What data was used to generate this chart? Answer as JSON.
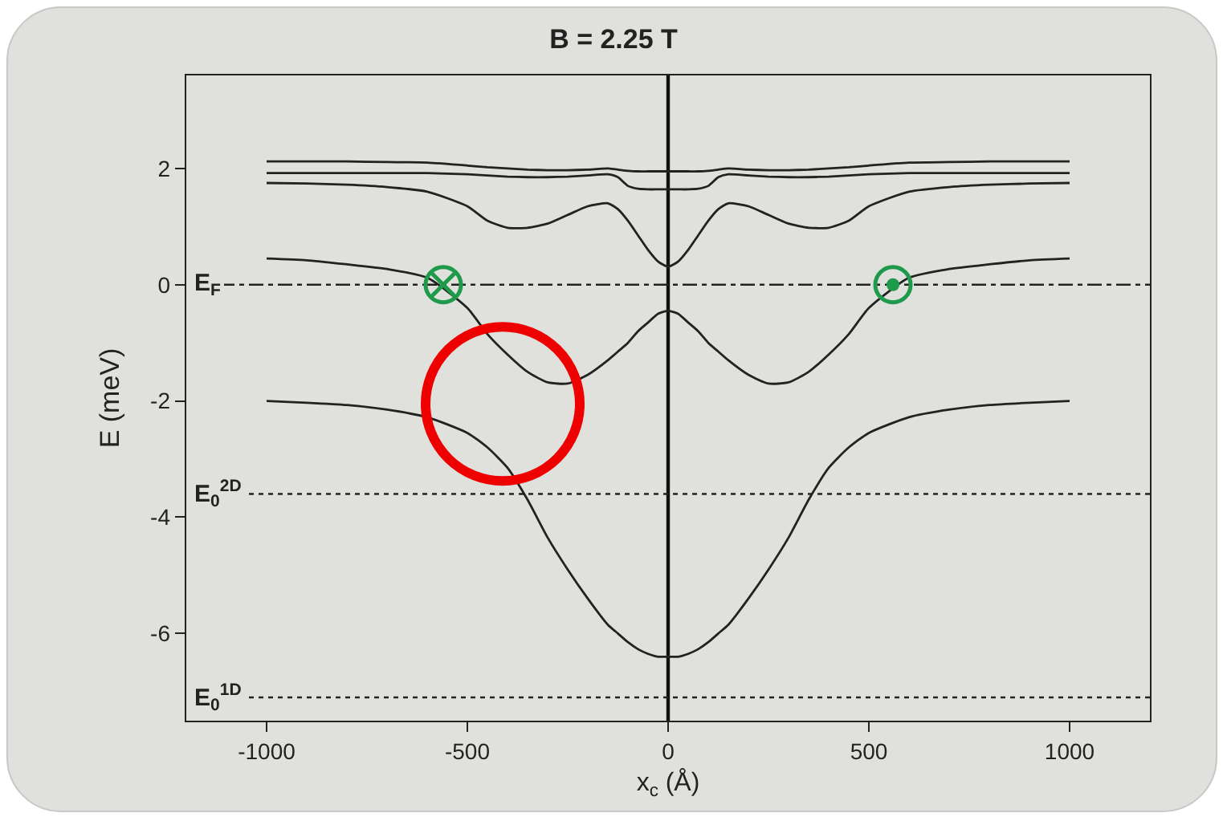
{
  "chart_data": {
    "type": "line",
    "title": "B = 2.25 T",
    "xlabel": "x$_{c}$ (Å)",
    "ylabel": "E (meV)",
    "x": [
      -1000,
      -900,
      -800,
      -700,
      -600,
      -500,
      -450,
      -400,
      -350,
      -300,
      -250,
      -200,
      -150,
      -125,
      -100,
      -75,
      -50,
      -25,
      0,
      25,
      50,
      75,
      100,
      125,
      150,
      200,
      250,
      300,
      350,
      400,
      450,
      500,
      600,
      700,
      800,
      900,
      1000
    ],
    "series": [
      {
        "color": "#222222",
        "values": [
          -2.0,
          -2.03,
          -2.07,
          -2.15,
          -2.28,
          -2.55,
          -2.8,
          -3.15,
          -3.7,
          -4.35,
          -4.9,
          -5.4,
          -5.85,
          -6.0,
          -6.15,
          -6.27,
          -6.35,
          -6.4,
          -6.4,
          -6.4,
          -6.35,
          -6.27,
          -6.15,
          -6.0,
          -5.85,
          -5.4,
          -4.9,
          -4.35,
          -3.7,
          -3.15,
          -2.8,
          -2.55,
          -2.28,
          -2.15,
          -2.07,
          -2.03,
          -2.0
        ]
      },
      {
        "color": "#222222",
        "values": [
          0.45,
          0.42,
          0.35,
          0.27,
          0.12,
          -0.4,
          -0.85,
          -1.2,
          -1.5,
          -1.68,
          -1.7,
          -1.55,
          -1.3,
          -1.15,
          -1.0,
          -0.8,
          -0.65,
          -0.5,
          -0.45,
          -0.5,
          -0.65,
          -0.8,
          -1.0,
          -1.15,
          -1.3,
          -1.55,
          -1.7,
          -1.68,
          -1.5,
          -1.2,
          -0.85,
          -0.4,
          0.12,
          0.27,
          0.35,
          0.42,
          0.45
        ]
      },
      {
        "color": "#222222",
        "values": [
          1.75,
          1.74,
          1.72,
          1.68,
          1.6,
          1.35,
          1.1,
          0.98,
          0.98,
          1.05,
          1.2,
          1.35,
          1.4,
          1.3,
          1.1,
          0.85,
          0.6,
          0.4,
          0.31,
          0.4,
          0.6,
          0.85,
          1.1,
          1.3,
          1.4,
          1.35,
          1.2,
          1.05,
          0.98,
          0.98,
          1.1,
          1.35,
          1.6,
          1.68,
          1.72,
          1.74,
          1.75
        ]
      },
      {
        "color": "#222222",
        "values": [
          1.92,
          1.92,
          1.92,
          1.92,
          1.92,
          1.9,
          1.88,
          1.86,
          1.85,
          1.85,
          1.86,
          1.88,
          1.9,
          1.85,
          1.7,
          1.65,
          1.64,
          1.64,
          1.64,
          1.64,
          1.64,
          1.65,
          1.7,
          1.85,
          1.9,
          1.88,
          1.86,
          1.85,
          1.85,
          1.86,
          1.88,
          1.9,
          1.92,
          1.92,
          1.92,
          1.92,
          1.92
        ]
      },
      {
        "color": "#222222",
        "values": [
          2.12,
          2.12,
          2.12,
          2.11,
          2.1,
          2.05,
          2.02,
          2.0,
          1.98,
          1.97,
          1.97,
          1.98,
          2.0,
          1.98,
          1.96,
          1.95,
          1.95,
          1.95,
          1.95,
          1.95,
          1.95,
          1.95,
          1.96,
          1.98,
          2.0,
          1.98,
          1.97,
          1.97,
          1.98,
          2.0,
          2.02,
          2.05,
          2.1,
          2.11,
          2.12,
          2.12,
          2.12
        ]
      }
    ],
    "xlim": [
      -1200,
      1200
    ],
    "ylim": [
      -7.5,
      3.6
    ],
    "xticks": [
      -1000,
      -500,
      0,
      500,
      1000
    ],
    "yticks": [
      -6,
      -4,
      -2,
      0,
      2
    ],
    "ref_lines": [
      {
        "axis": "y",
        "value": 0,
        "label": "E$_{F}$",
        "line_style": "dashdot",
        "color": "#222222"
      },
      {
        "axis": "y",
        "value": -3.6,
        "label": "E$_{0}$$^{2D}$",
        "line_style": "dotted",
        "color": "#222222"
      },
      {
        "axis": "y",
        "value": -7.1,
        "label": "E$_{0}$$^{1D}$",
        "line_style": "dotted",
        "color": "#222222"
      },
      {
        "axis": "x",
        "value": 0,
        "line_style": "solid",
        "color": "#111111"
      }
    ],
    "grid": false,
    "marker": "none",
    "line_style": "solid"
  }
}
